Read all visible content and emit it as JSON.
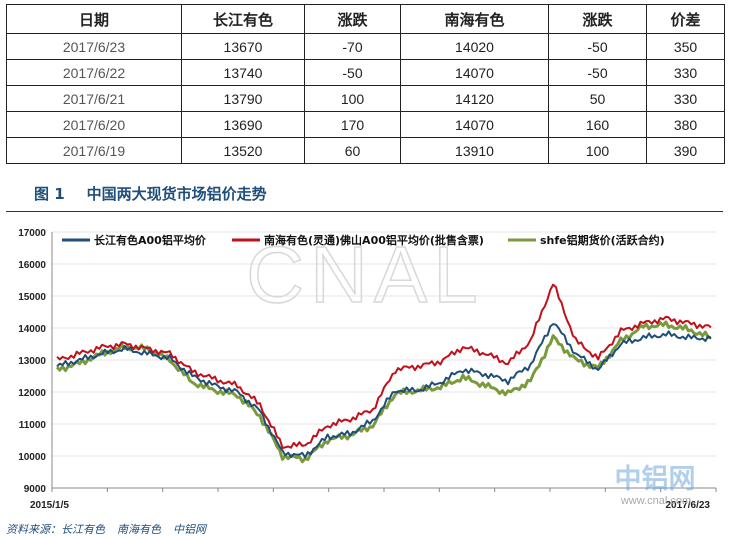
{
  "table": {
    "headers": [
      "日期",
      "长江有色",
      "涨跌",
      "南海有色",
      "涨跌",
      "价差"
    ],
    "rows": [
      [
        "2017/6/23",
        "13670",
        "-70",
        "14020",
        "-50",
        "350"
      ],
      [
        "2017/6/22",
        "13740",
        "-50",
        "14070",
        "-50",
        "330"
      ],
      [
        "2017/6/21",
        "13790",
        "100",
        "14120",
        "50",
        "330"
      ],
      [
        "2017/6/20",
        "13690",
        "170",
        "14070",
        "160",
        "380"
      ],
      [
        "2017/6/19",
        "13520",
        "60",
        "13910",
        "100",
        "390"
      ]
    ]
  },
  "figure": {
    "number": "图 1",
    "title": "中国两大现货市场铝价走势"
  },
  "watermark": {
    "center": "CNAL",
    "corner": "中铝网",
    "url": "www.cnal.com"
  },
  "source": {
    "label": "资料来源：",
    "items": [
      "长江有色",
      "南海有色",
      "中铝网"
    ]
  },
  "colors": {
    "changjiang": "#1f4e79",
    "nanhai": "#c0101b",
    "shfe": "#7a9a3c",
    "title": "#1f4e79"
  },
  "chart_data": {
    "type": "line",
    "x_start_label": "2015/1/5",
    "x_end_label": "2017/6/23",
    "ylim": [
      9000,
      17000
    ],
    "yticks": [
      9000,
      10000,
      11000,
      12000,
      13000,
      14000,
      15000,
      16000,
      17000
    ],
    "x": [
      "2015/1",
      "2015/2",
      "2015/3",
      "2015/4",
      "2015/5",
      "2015/6",
      "2015/7",
      "2015/8",
      "2015/9",
      "2015/10",
      "2015/11",
      "2015/12",
      "2016/1",
      "2016/2",
      "2016/3",
      "2016/4",
      "2016/5",
      "2016/6",
      "2016/7",
      "2016/8",
      "2016/9",
      "2016/10",
      "2016/11",
      "2016/12",
      "2017/1",
      "2017/2",
      "2017/3",
      "2017/4",
      "2017/5",
      "2017/6"
    ],
    "series": [
      {
        "name": "长江有色A00铝平均价",
        "values": [
          12800,
          13000,
          13200,
          13350,
          13200,
          13050,
          12500,
          12200,
          12000,
          11400,
          10100,
          10000,
          10600,
          10700,
          11100,
          12050,
          12050,
          12300,
          12700,
          12550,
          12350,
          12850,
          14200,
          13200,
          12700,
          13500,
          13700,
          13800,
          13700,
          13670
        ]
      },
      {
        "name": "南海有色(灵通)佛山A00铝平均价(批售含票)",
        "values": [
          13000,
          13200,
          13400,
          13500,
          13350,
          13200,
          12650,
          12400,
          12200,
          11600,
          10300,
          10350,
          10950,
          11150,
          11450,
          12700,
          12800,
          12950,
          13400,
          13200,
          12900,
          13600,
          15400,
          13600,
          13050,
          13900,
          14150,
          14300,
          14150,
          14020
        ]
      },
      {
        "name": "shfe铝期货价(活跃合约)",
        "values": [
          12700,
          12900,
          13200,
          13400,
          13350,
          13000,
          12300,
          12050,
          11900,
          11250,
          10000,
          9900,
          10500,
          10650,
          10950,
          11950,
          12050,
          12150,
          12450,
          12200,
          11950,
          12350,
          13700,
          13000,
          12750,
          13600,
          14050,
          14100,
          13950,
          13700
        ]
      }
    ]
  }
}
